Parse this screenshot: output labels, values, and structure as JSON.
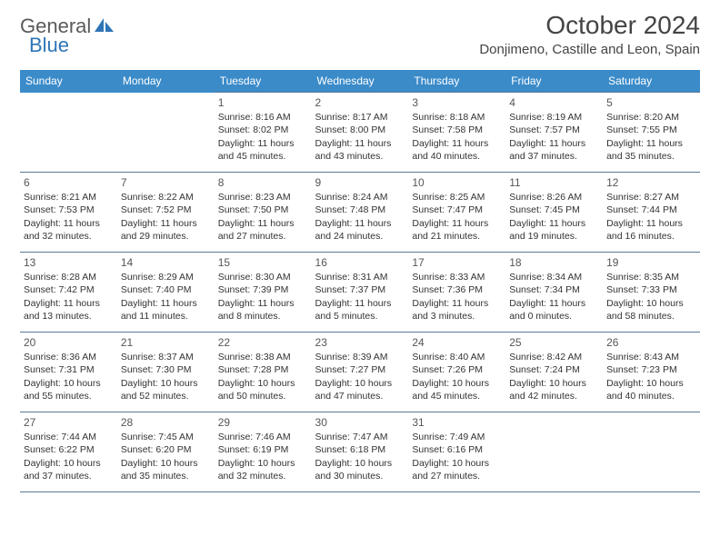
{
  "brand": {
    "part1": "General",
    "part2": "Blue"
  },
  "title": "October 2024",
  "location": "Donjimeno, Castille and Leon, Spain",
  "colors": {
    "header_bg": "#3b8bc9",
    "header_text": "#ffffff",
    "cell_border": "#5a7a9a",
    "brand_gray": "#5a5a5a",
    "brand_blue": "#2e75b6"
  },
  "weekdays": [
    "Sunday",
    "Monday",
    "Tuesday",
    "Wednesday",
    "Thursday",
    "Friday",
    "Saturday"
  ],
  "leading_blanks": 2,
  "days": [
    {
      "n": "1",
      "sr": "8:16 AM",
      "ss": "8:02 PM",
      "dl": "11 hours and 45 minutes."
    },
    {
      "n": "2",
      "sr": "8:17 AM",
      "ss": "8:00 PM",
      "dl": "11 hours and 43 minutes."
    },
    {
      "n": "3",
      "sr": "8:18 AM",
      "ss": "7:58 PM",
      "dl": "11 hours and 40 minutes."
    },
    {
      "n": "4",
      "sr": "8:19 AM",
      "ss": "7:57 PM",
      "dl": "11 hours and 37 minutes."
    },
    {
      "n": "5",
      "sr": "8:20 AM",
      "ss": "7:55 PM",
      "dl": "11 hours and 35 minutes."
    },
    {
      "n": "6",
      "sr": "8:21 AM",
      "ss": "7:53 PM",
      "dl": "11 hours and 32 minutes."
    },
    {
      "n": "7",
      "sr": "8:22 AM",
      "ss": "7:52 PM",
      "dl": "11 hours and 29 minutes."
    },
    {
      "n": "8",
      "sr": "8:23 AM",
      "ss": "7:50 PM",
      "dl": "11 hours and 27 minutes."
    },
    {
      "n": "9",
      "sr": "8:24 AM",
      "ss": "7:48 PM",
      "dl": "11 hours and 24 minutes."
    },
    {
      "n": "10",
      "sr": "8:25 AM",
      "ss": "7:47 PM",
      "dl": "11 hours and 21 minutes."
    },
    {
      "n": "11",
      "sr": "8:26 AM",
      "ss": "7:45 PM",
      "dl": "11 hours and 19 minutes."
    },
    {
      "n": "12",
      "sr": "8:27 AM",
      "ss": "7:44 PM",
      "dl": "11 hours and 16 minutes."
    },
    {
      "n": "13",
      "sr": "8:28 AM",
      "ss": "7:42 PM",
      "dl": "11 hours and 13 minutes."
    },
    {
      "n": "14",
      "sr": "8:29 AM",
      "ss": "7:40 PM",
      "dl": "11 hours and 11 minutes."
    },
    {
      "n": "15",
      "sr": "8:30 AM",
      "ss": "7:39 PM",
      "dl": "11 hours and 8 minutes."
    },
    {
      "n": "16",
      "sr": "8:31 AM",
      "ss": "7:37 PM",
      "dl": "11 hours and 5 minutes."
    },
    {
      "n": "17",
      "sr": "8:33 AM",
      "ss": "7:36 PM",
      "dl": "11 hours and 3 minutes."
    },
    {
      "n": "18",
      "sr": "8:34 AM",
      "ss": "7:34 PM",
      "dl": "11 hours and 0 minutes."
    },
    {
      "n": "19",
      "sr": "8:35 AM",
      "ss": "7:33 PM",
      "dl": "10 hours and 58 minutes."
    },
    {
      "n": "20",
      "sr": "8:36 AM",
      "ss": "7:31 PM",
      "dl": "10 hours and 55 minutes."
    },
    {
      "n": "21",
      "sr": "8:37 AM",
      "ss": "7:30 PM",
      "dl": "10 hours and 52 minutes."
    },
    {
      "n": "22",
      "sr": "8:38 AM",
      "ss": "7:28 PM",
      "dl": "10 hours and 50 minutes."
    },
    {
      "n": "23",
      "sr": "8:39 AM",
      "ss": "7:27 PM",
      "dl": "10 hours and 47 minutes."
    },
    {
      "n": "24",
      "sr": "8:40 AM",
      "ss": "7:26 PM",
      "dl": "10 hours and 45 minutes."
    },
    {
      "n": "25",
      "sr": "8:42 AM",
      "ss": "7:24 PM",
      "dl": "10 hours and 42 minutes."
    },
    {
      "n": "26",
      "sr": "8:43 AM",
      "ss": "7:23 PM",
      "dl": "10 hours and 40 minutes."
    },
    {
      "n": "27",
      "sr": "7:44 AM",
      "ss": "6:22 PM",
      "dl": "10 hours and 37 minutes."
    },
    {
      "n": "28",
      "sr": "7:45 AM",
      "ss": "6:20 PM",
      "dl": "10 hours and 35 minutes."
    },
    {
      "n": "29",
      "sr": "7:46 AM",
      "ss": "6:19 PM",
      "dl": "10 hours and 32 minutes."
    },
    {
      "n": "30",
      "sr": "7:47 AM",
      "ss": "6:18 PM",
      "dl": "10 hours and 30 minutes."
    },
    {
      "n": "31",
      "sr": "7:49 AM",
      "ss": "6:16 PM",
      "dl": "10 hours and 27 minutes."
    }
  ],
  "labels": {
    "sunrise": "Sunrise:",
    "sunset": "Sunset:",
    "daylight": "Daylight:"
  }
}
